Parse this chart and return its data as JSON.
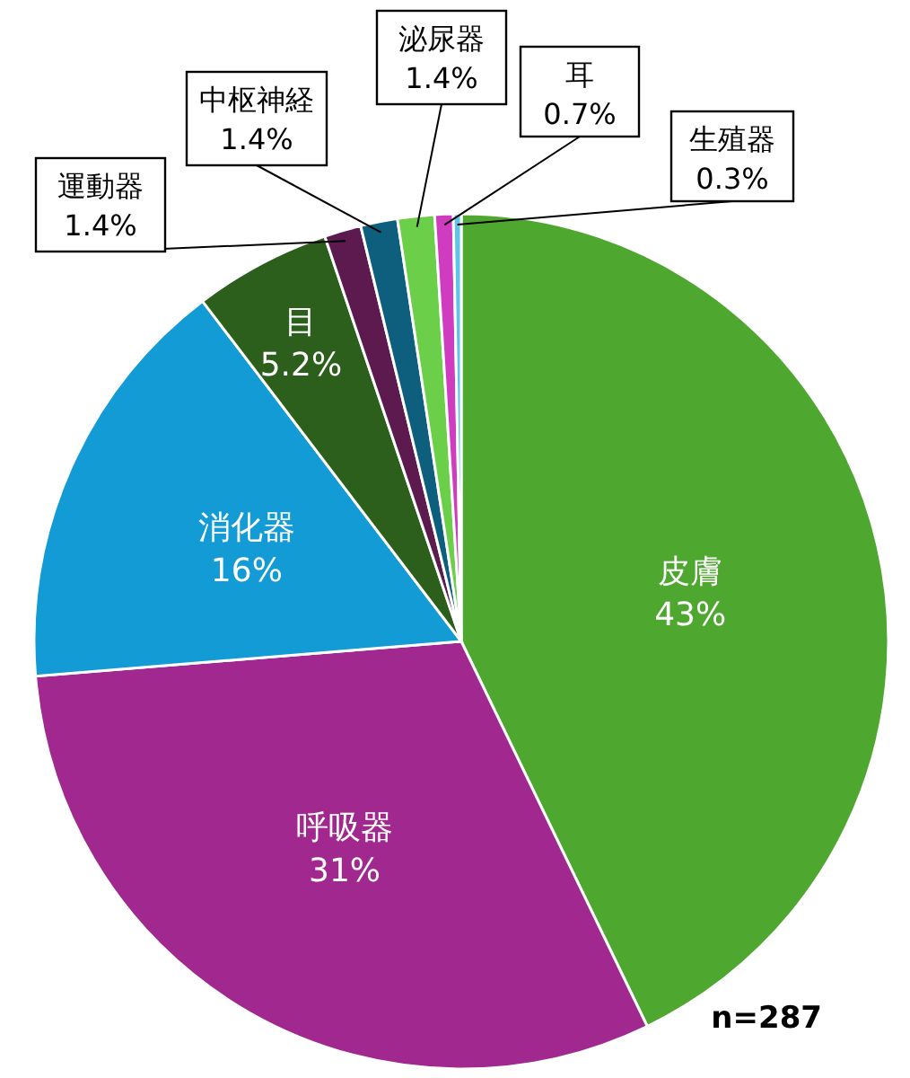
{
  "chart_data": {
    "type": "pie",
    "categories": [
      "皮膚",
      "呼吸器",
      "消化器",
      "目",
      "運動器",
      "中枢神経",
      "泌尿器",
      "耳",
      "生殖器"
    ],
    "values": [
      43,
      31,
      16,
      5.2,
      1.4,
      1.4,
      1.4,
      0.7,
      0.3
    ],
    "value_labels": [
      "43%",
      "31%",
      "16%",
      "5.2%",
      "1.4%",
      "1.4%",
      "1.4%",
      "0.7%",
      "0.3%"
    ],
    "colors": [
      "#4ea72e",
      "#a0288f",
      "#139bd6",
      "#2d5f1c",
      "#5c1a4f",
      "#0e5f7d",
      "#6ccf4a",
      "#d03cc0",
      "#5fc3ea"
    ],
    "annotations": [
      "n=287"
    ]
  }
}
